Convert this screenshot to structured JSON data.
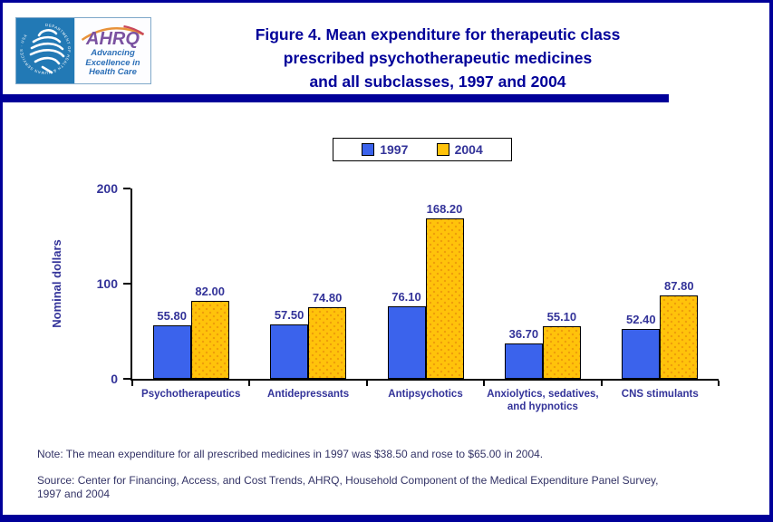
{
  "header": {
    "logo": {
      "seal_text": "DEPARTMENT OF HEALTH & HUMAN SERVICES · USA",
      "ahrq_text": "AHRQ",
      "tagline_lines": [
        "Advancing",
        "Excellence in",
        "Health Care"
      ]
    },
    "title_lines": [
      "Figure 4. Mean expenditure for therapeutic class",
      "prescribed psychotherapeutic medicines",
      "and all subclasses, 1997 and 2004"
    ]
  },
  "colors": {
    "frame_navy": "#000099",
    "label_navy": "#333399",
    "note_navy": "#333366",
    "bar_1997": "#3b63ec",
    "bar_2004": "#ffc30b"
  },
  "chart_data": {
    "type": "bar",
    "title": "Figure 4. Mean expenditure for therapeutic class prescribed psychotherapeutic medicines and all subclasses, 1997 and 2004",
    "xlabel": "",
    "ylabel": "Nominal dollars",
    "ylim": [
      0,
      200
    ],
    "yticks": [
      0,
      100,
      200
    ],
    "grid": false,
    "legend_position": "top-center",
    "categories": [
      "Psychotherapeutics",
      "Antidepressants",
      "Antipsychotics",
      "Anxiolytics, sedatives, and hypnotics",
      "CNS stimulants"
    ],
    "series": [
      {
        "name": "1997",
        "color": "#3b63ec",
        "values": [
          55.8,
          57.5,
          76.1,
          36.7,
          52.4
        ]
      },
      {
        "name": "2004",
        "color": "#ffc30b",
        "values": [
          82.0,
          74.8,
          168.2,
          55.1,
          87.8
        ]
      }
    ],
    "value_label_decimals": 2
  },
  "notes": {
    "note": "Note: The mean expenditure for all prescribed medicines in 1997 was $38.50 and rose to $65.00 in 2004.",
    "source": "Source: Center for Financing, Access, and Cost Trends, AHRQ, Household Component of the Medical Expenditure Panel Survey, 1997 and 2004"
  }
}
